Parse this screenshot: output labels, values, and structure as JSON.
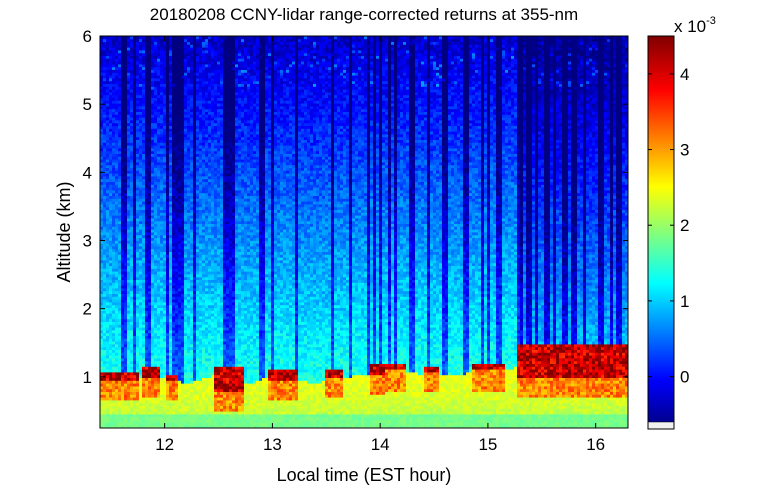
{
  "chart_data": {
    "type": "heatmap",
    "title": "20180208 CCNY-lidar range-corrected returns at 355-nm",
    "xlabel": "Local time (EST hour)",
    "ylabel": "Altitude (km)",
    "xlim": [
      11.4,
      16.3
    ],
    "ylim": [
      0.25,
      6.0
    ],
    "xticks": [
      12,
      13,
      14,
      15,
      16
    ],
    "xtick_labels": [
      "12",
      "13",
      "14",
      "15",
      "16"
    ],
    "yticks": [
      1,
      2,
      3,
      4,
      5,
      6
    ],
    "ytick_labels": [
      "1",
      "2",
      "3",
      "4",
      "5",
      "6"
    ],
    "colorbar": {
      "min": -0.0006,
      "max": 0.0045,
      "ticks": [
        0,
        0.001,
        0.002,
        0.003,
        0.004
      ],
      "tick_labels": [
        "0",
        "1",
        "2",
        "3",
        "4"
      ],
      "multiplier_base": "x 10",
      "multiplier_exp": "-3",
      "colormap": "jet"
    },
    "boundary_layer_top_km": [
      {
        "t": 11.4,
        "z": 1.05
      },
      {
        "t": 11.7,
        "z": 1.1
      },
      {
        "t": 12.0,
        "z": 1.1
      },
      {
        "t": 12.2,
        "z": 1.0
      },
      {
        "t": 12.5,
        "z": 1.15
      },
      {
        "t": 12.8,
        "z": 1.0
      },
      {
        "t": 13.0,
        "z": 1.12
      },
      {
        "t": 13.2,
        "z": 1.08
      },
      {
        "t": 13.4,
        "z": 1.0
      },
      {
        "t": 13.6,
        "z": 1.1
      },
      {
        "t": 13.9,
        "z": 1.12
      },
      {
        "t": 14.2,
        "z": 1.18
      },
      {
        "t": 14.5,
        "z": 1.12
      },
      {
        "t": 14.8,
        "z": 1.15
      },
      {
        "t": 15.2,
        "z": 1.2
      },
      {
        "t": 15.35,
        "z": 1.35
      },
      {
        "t": 15.7,
        "z": 1.4
      },
      {
        "t": 16.0,
        "z": 1.38
      },
      {
        "t": 16.3,
        "z": 1.5
      }
    ],
    "cloud_segments": [
      {
        "t0": 11.4,
        "t1": 11.75,
        "z_base": 0.95,
        "z_top": 1.08
      },
      {
        "t0": 11.8,
        "t1": 11.95,
        "z_base": 1.0,
        "z_top": 1.15
      },
      {
        "t0": 12.0,
        "t1": 12.12,
        "z_base": 0.95,
        "z_top": 1.05
      },
      {
        "t0": 12.45,
        "t1": 12.75,
        "z_base": 0.8,
        "z_top": 1.15
      },
      {
        "t0": 12.95,
        "t1": 13.25,
        "z_base": 0.95,
        "z_top": 1.1
      },
      {
        "t0": 13.5,
        "t1": 13.65,
        "z_base": 1.0,
        "z_top": 1.1
      },
      {
        "t0": 13.9,
        "t1": 14.05,
        "z_base": 1.05,
        "z_top": 1.2
      },
      {
        "t0": 14.05,
        "t1": 14.25,
        "z_base": 1.1,
        "z_top": 1.2
      },
      {
        "t0": 14.4,
        "t1": 14.55,
        "z_base": 1.08,
        "z_top": 1.15
      },
      {
        "t0": 14.85,
        "t1": 15.15,
        "z_base": 1.1,
        "z_top": 1.2
      },
      {
        "t0": 15.28,
        "t1": 16.3,
        "z_base": 1.0,
        "z_top": 1.5
      }
    ],
    "dark_streak_times": [
      11.62,
      11.72,
      11.85,
      12.02,
      12.1,
      12.15,
      12.28,
      12.55,
      12.58,
      12.62,
      12.9,
      13.0,
      13.22,
      13.55,
      13.72,
      13.9,
      13.95,
      14.0,
      14.08,
      14.15,
      14.3,
      14.45,
      14.6,
      14.8,
      14.95,
      15.0,
      15.1,
      15.3,
      15.38,
      15.45,
      15.55,
      15.62,
      15.72,
      15.8,
      15.9,
      16.05,
      16.15,
      16.22
    ],
    "grid": false,
    "legend": "none"
  }
}
